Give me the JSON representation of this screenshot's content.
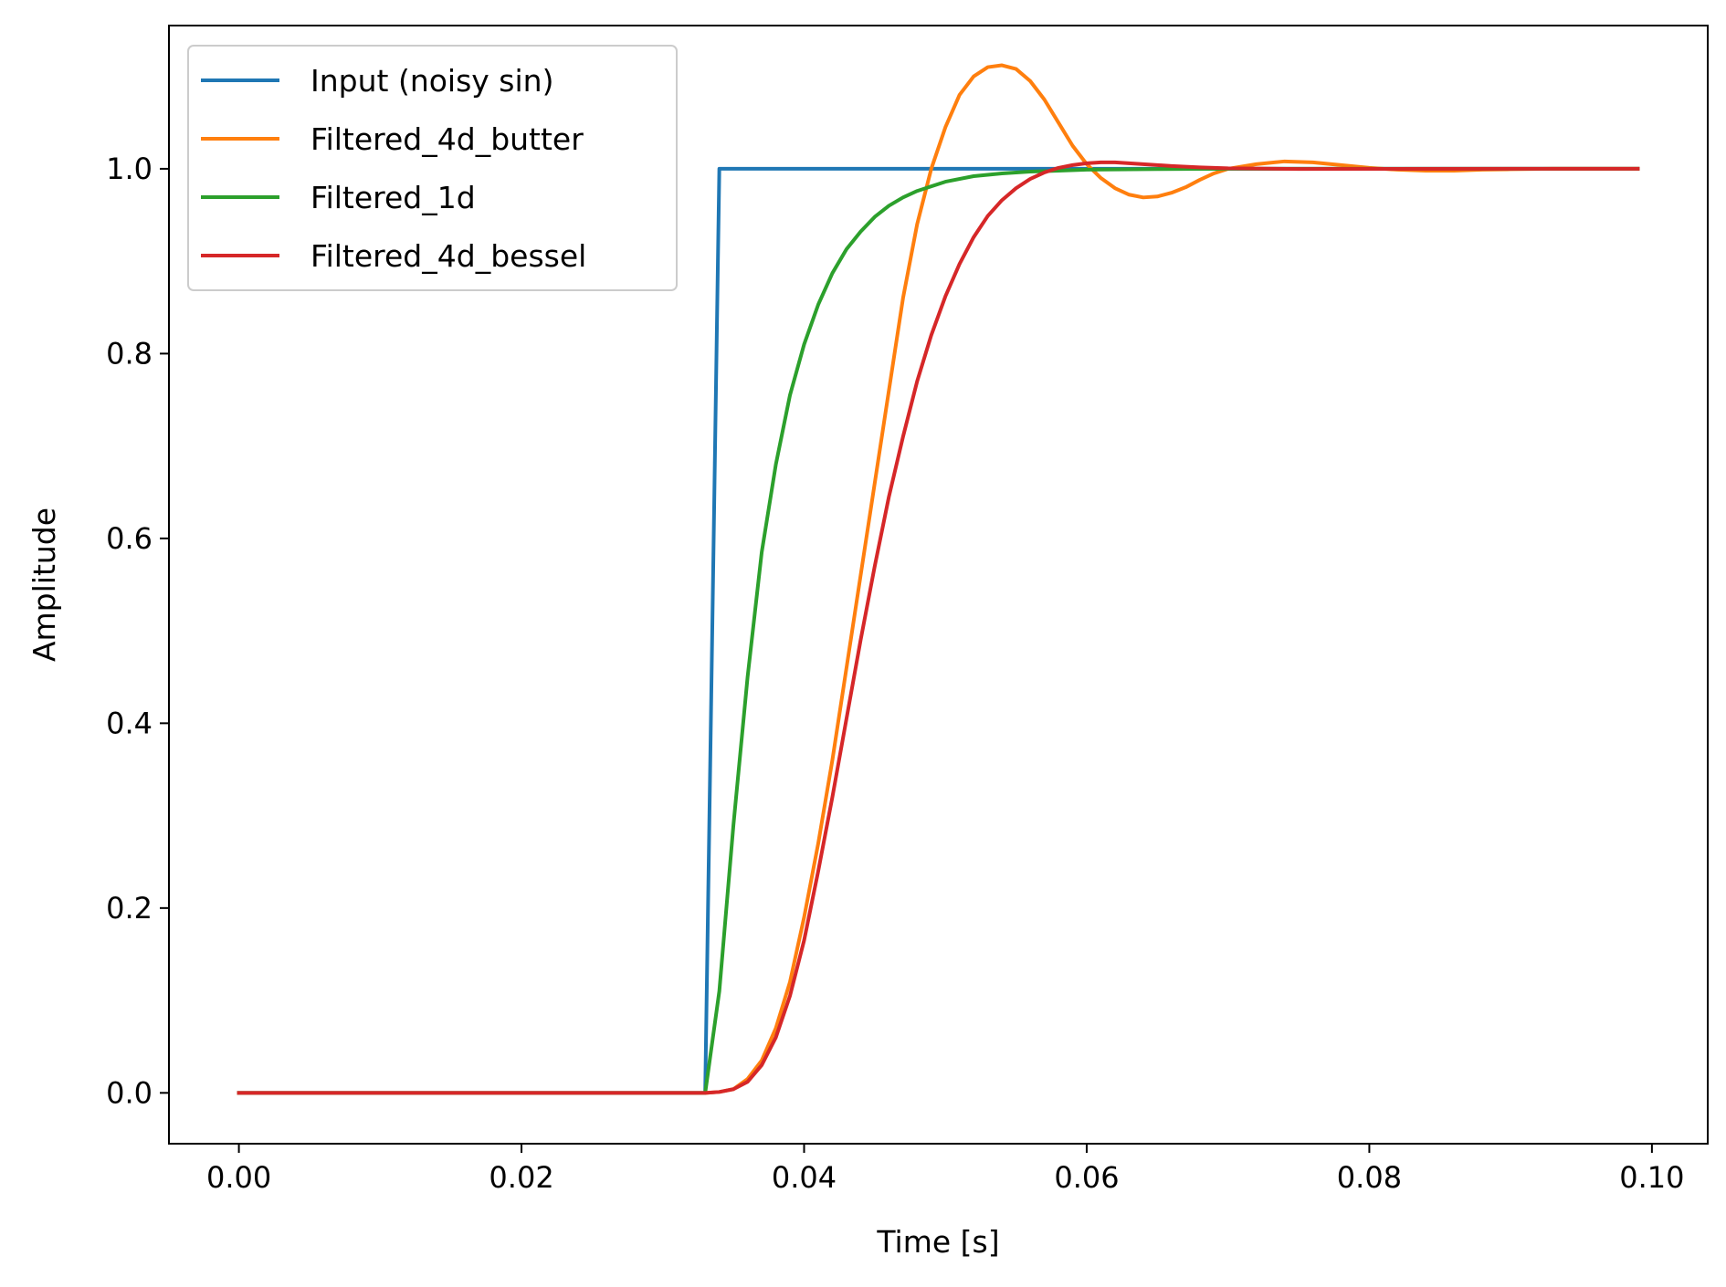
{
  "chart_data": {
    "type": "line",
    "title": "",
    "xlabel": "Time [s]",
    "ylabel": "Amplitude",
    "xlim": [
      -0.00495,
      0.10395
    ],
    "ylim": [
      -0.055,
      1.155
    ],
    "xticks": [
      0.0,
      0.02,
      0.04,
      0.06,
      0.08,
      0.1
    ],
    "xtick_labels": [
      "0.00",
      "0.02",
      "0.04",
      "0.06",
      "0.08",
      "0.10"
    ],
    "yticks": [
      0.0,
      0.2,
      0.4,
      0.6,
      0.8,
      1.0
    ],
    "ytick_labels": [
      "0.0",
      "0.2",
      "0.4",
      "0.6",
      "0.8",
      "1.0"
    ],
    "grid": false,
    "legend_position": "top-left",
    "series": [
      {
        "name": "Input (noisy sin)",
        "color": "#1f77b4",
        "x": [
          0.0,
          0.033,
          0.034,
          0.099
        ],
        "y": [
          0.0,
          0.0,
          1.0,
          1.0
        ]
      },
      {
        "name": "Filtered_4d_butter",
        "color": "#ff7f0e",
        "x": [
          0.0,
          0.033,
          0.034,
          0.035,
          0.036,
          0.037,
          0.038,
          0.039,
          0.04,
          0.041,
          0.042,
          0.043,
          0.044,
          0.045,
          0.046,
          0.047,
          0.048,
          0.049,
          0.05,
          0.051,
          0.052,
          0.053,
          0.054,
          0.055,
          0.056,
          0.057,
          0.058,
          0.059,
          0.06,
          0.061,
          0.062,
          0.063,
          0.064,
          0.065,
          0.066,
          0.067,
          0.068,
          0.069,
          0.07,
          0.072,
          0.074,
          0.076,
          0.078,
          0.08,
          0.082,
          0.084,
          0.086,
          0.088,
          0.09,
          0.093,
          0.096,
          0.099
        ],
        "y": [
          0.0,
          0.0,
          0.001,
          0.004,
          0.015,
          0.035,
          0.07,
          0.12,
          0.19,
          0.27,
          0.36,
          0.46,
          0.56,
          0.66,
          0.76,
          0.86,
          0.94,
          1.0,
          1.045,
          1.08,
          1.1,
          1.11,
          1.112,
          1.108,
          1.095,
          1.075,
          1.05,
          1.025,
          1.005,
          0.99,
          0.979,
          0.972,
          0.969,
          0.97,
          0.974,
          0.98,
          0.988,
          0.995,
          1.0,
          1.005,
          1.008,
          1.007,
          1.004,
          1.001,
          0.999,
          0.998,
          0.998,
          0.999,
          0.9995,
          1.0,
          1.0,
          1.0
        ]
      },
      {
        "name": "Filtered_1d",
        "color": "#2ca02c",
        "x": [
          0.0,
          0.033,
          0.034,
          0.035,
          0.036,
          0.037,
          0.038,
          0.039,
          0.04,
          0.041,
          0.042,
          0.043,
          0.044,
          0.045,
          0.046,
          0.047,
          0.048,
          0.05,
          0.052,
          0.054,
          0.056,
          0.058,
          0.06,
          0.065,
          0.07,
          0.08,
          0.09,
          0.099
        ],
        "y": [
          0.0,
          0.0,
          0.11,
          0.29,
          0.45,
          0.585,
          0.68,
          0.755,
          0.81,
          0.853,
          0.887,
          0.913,
          0.932,
          0.948,
          0.96,
          0.969,
          0.976,
          0.986,
          0.992,
          0.995,
          0.997,
          0.998,
          0.999,
          0.9997,
          1.0,
          1.0,
          1.0,
          1.0
        ]
      },
      {
        "name": "Filtered_4d_bessel",
        "color": "#d62728",
        "x": [
          0.0,
          0.033,
          0.034,
          0.035,
          0.036,
          0.037,
          0.038,
          0.039,
          0.04,
          0.041,
          0.042,
          0.043,
          0.044,
          0.045,
          0.046,
          0.047,
          0.048,
          0.049,
          0.05,
          0.051,
          0.052,
          0.053,
          0.054,
          0.055,
          0.056,
          0.057,
          0.058,
          0.059,
          0.06,
          0.061,
          0.062,
          0.063,
          0.064,
          0.066,
          0.068,
          0.07,
          0.075,
          0.08,
          0.09,
          0.099
        ],
        "y": [
          0.0,
          0.0,
          0.001,
          0.004,
          0.012,
          0.03,
          0.06,
          0.105,
          0.165,
          0.24,
          0.32,
          0.405,
          0.49,
          0.57,
          0.645,
          0.71,
          0.77,
          0.82,
          0.862,
          0.897,
          0.926,
          0.949,
          0.966,
          0.979,
          0.989,
          0.996,
          1.001,
          1.004,
          1.006,
          1.007,
          1.007,
          1.006,
          1.005,
          1.003,
          1.0015,
          1.0005,
          0.9998,
          0.9999,
          1.0,
          1.0
        ]
      }
    ]
  }
}
